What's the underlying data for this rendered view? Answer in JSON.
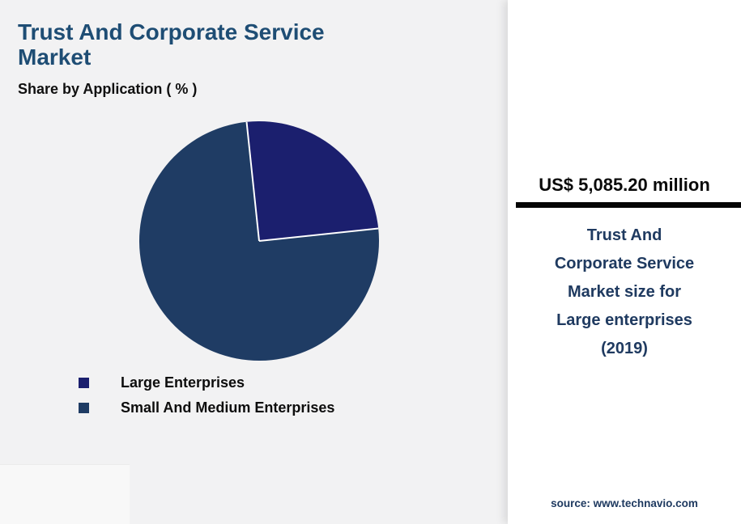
{
  "header": {
    "title": "Trust And Corporate Service\nMarket",
    "subtitle": "Share by Application ( % )"
  },
  "chart_data": {
    "type": "pie",
    "title": "Share by Application ( % )",
    "unit": "%",
    "start_angle_deg": -6,
    "legend_position": "bottom-left",
    "slices": [
      {
        "label": "Large Enterprises",
        "value": 25,
        "color": "#1b1f6e"
      },
      {
        "label": "Small And Medium Enterprises",
        "value": 75,
        "color": "#1f3c64"
      }
    ]
  },
  "right_panel": {
    "highlight_value": "US$ 5,085.20 million",
    "caption": "Trust And\nCorporate Service\nMarket size for\nLarge enterprises\n(2019)",
    "source": "source: www.technavio.com"
  },
  "colors": {
    "title": "#1e4d74",
    "panel_text": "#1f3a60",
    "left_bg": "#f2f2f3",
    "panel_bg": "#ffffff",
    "divider": "#050505",
    "slice_separator": "#ffffff"
  }
}
